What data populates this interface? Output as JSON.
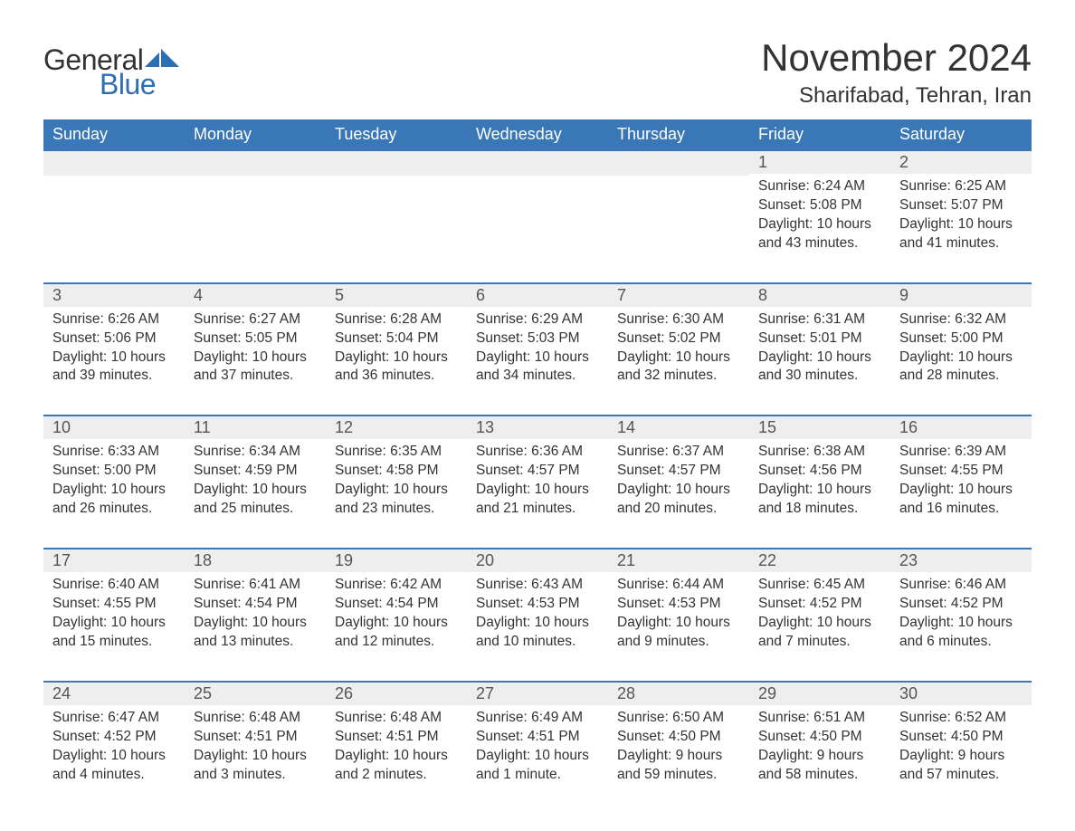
{
  "logo": {
    "text1": "General",
    "text2": "Blue",
    "flag_color": "#2d6fb5"
  },
  "header": {
    "month_title": "November 2024",
    "location": "Sharifabad, Tehran, Iran"
  },
  "colors": {
    "header_bg": "#3a77b6",
    "header_fg": "#ffffff",
    "row_border": "#3a77b6",
    "daynum_bg": "#eeeeee",
    "text": "#333333",
    "logo_blue": "#2d6fb5"
  },
  "days_of_week": [
    "Sunday",
    "Monday",
    "Tuesday",
    "Wednesday",
    "Thursday",
    "Friday",
    "Saturday"
  ],
  "weeks": [
    [
      null,
      null,
      null,
      null,
      null,
      {
        "n": 1,
        "sunrise": "6:24 AM",
        "sunset": "5:08 PM",
        "daylight": "10 hours and 43 minutes."
      },
      {
        "n": 2,
        "sunrise": "6:25 AM",
        "sunset": "5:07 PM",
        "daylight": "10 hours and 41 minutes."
      }
    ],
    [
      {
        "n": 3,
        "sunrise": "6:26 AM",
        "sunset": "5:06 PM",
        "daylight": "10 hours and 39 minutes."
      },
      {
        "n": 4,
        "sunrise": "6:27 AM",
        "sunset": "5:05 PM",
        "daylight": "10 hours and 37 minutes."
      },
      {
        "n": 5,
        "sunrise": "6:28 AM",
        "sunset": "5:04 PM",
        "daylight": "10 hours and 36 minutes."
      },
      {
        "n": 6,
        "sunrise": "6:29 AM",
        "sunset": "5:03 PM",
        "daylight": "10 hours and 34 minutes."
      },
      {
        "n": 7,
        "sunrise": "6:30 AM",
        "sunset": "5:02 PM",
        "daylight": "10 hours and 32 minutes."
      },
      {
        "n": 8,
        "sunrise": "6:31 AM",
        "sunset": "5:01 PM",
        "daylight": "10 hours and 30 minutes."
      },
      {
        "n": 9,
        "sunrise": "6:32 AM",
        "sunset": "5:00 PM",
        "daylight": "10 hours and 28 minutes."
      }
    ],
    [
      {
        "n": 10,
        "sunrise": "6:33 AM",
        "sunset": "5:00 PM",
        "daylight": "10 hours and 26 minutes."
      },
      {
        "n": 11,
        "sunrise": "6:34 AM",
        "sunset": "4:59 PM",
        "daylight": "10 hours and 25 minutes."
      },
      {
        "n": 12,
        "sunrise": "6:35 AM",
        "sunset": "4:58 PM",
        "daylight": "10 hours and 23 minutes."
      },
      {
        "n": 13,
        "sunrise": "6:36 AM",
        "sunset": "4:57 PM",
        "daylight": "10 hours and 21 minutes."
      },
      {
        "n": 14,
        "sunrise": "6:37 AM",
        "sunset": "4:57 PM",
        "daylight": "10 hours and 20 minutes."
      },
      {
        "n": 15,
        "sunrise": "6:38 AM",
        "sunset": "4:56 PM",
        "daylight": "10 hours and 18 minutes."
      },
      {
        "n": 16,
        "sunrise": "6:39 AM",
        "sunset": "4:55 PM",
        "daylight": "10 hours and 16 minutes."
      }
    ],
    [
      {
        "n": 17,
        "sunrise": "6:40 AM",
        "sunset": "4:55 PM",
        "daylight": "10 hours and 15 minutes."
      },
      {
        "n": 18,
        "sunrise": "6:41 AM",
        "sunset": "4:54 PM",
        "daylight": "10 hours and 13 minutes."
      },
      {
        "n": 19,
        "sunrise": "6:42 AM",
        "sunset": "4:54 PM",
        "daylight": "10 hours and 12 minutes."
      },
      {
        "n": 20,
        "sunrise": "6:43 AM",
        "sunset": "4:53 PM",
        "daylight": "10 hours and 10 minutes."
      },
      {
        "n": 21,
        "sunrise": "6:44 AM",
        "sunset": "4:53 PM",
        "daylight": "10 hours and 9 minutes."
      },
      {
        "n": 22,
        "sunrise": "6:45 AM",
        "sunset": "4:52 PM",
        "daylight": "10 hours and 7 minutes."
      },
      {
        "n": 23,
        "sunrise": "6:46 AM",
        "sunset": "4:52 PM",
        "daylight": "10 hours and 6 minutes."
      }
    ],
    [
      {
        "n": 24,
        "sunrise": "6:47 AM",
        "sunset": "4:52 PM",
        "daylight": "10 hours and 4 minutes."
      },
      {
        "n": 25,
        "sunrise": "6:48 AM",
        "sunset": "4:51 PM",
        "daylight": "10 hours and 3 minutes."
      },
      {
        "n": 26,
        "sunrise": "6:48 AM",
        "sunset": "4:51 PM",
        "daylight": "10 hours and 2 minutes."
      },
      {
        "n": 27,
        "sunrise": "6:49 AM",
        "sunset": "4:51 PM",
        "daylight": "10 hours and 1 minute."
      },
      {
        "n": 28,
        "sunrise": "6:50 AM",
        "sunset": "4:50 PM",
        "daylight": "9 hours and 59 minutes."
      },
      {
        "n": 29,
        "sunrise": "6:51 AM",
        "sunset": "4:50 PM",
        "daylight": "9 hours and 58 minutes."
      },
      {
        "n": 30,
        "sunrise": "6:52 AM",
        "sunset": "4:50 PM",
        "daylight": "9 hours and 57 minutes."
      }
    ]
  ],
  "labels": {
    "sunrise": "Sunrise:",
    "sunset": "Sunset:",
    "daylight": "Daylight:"
  }
}
